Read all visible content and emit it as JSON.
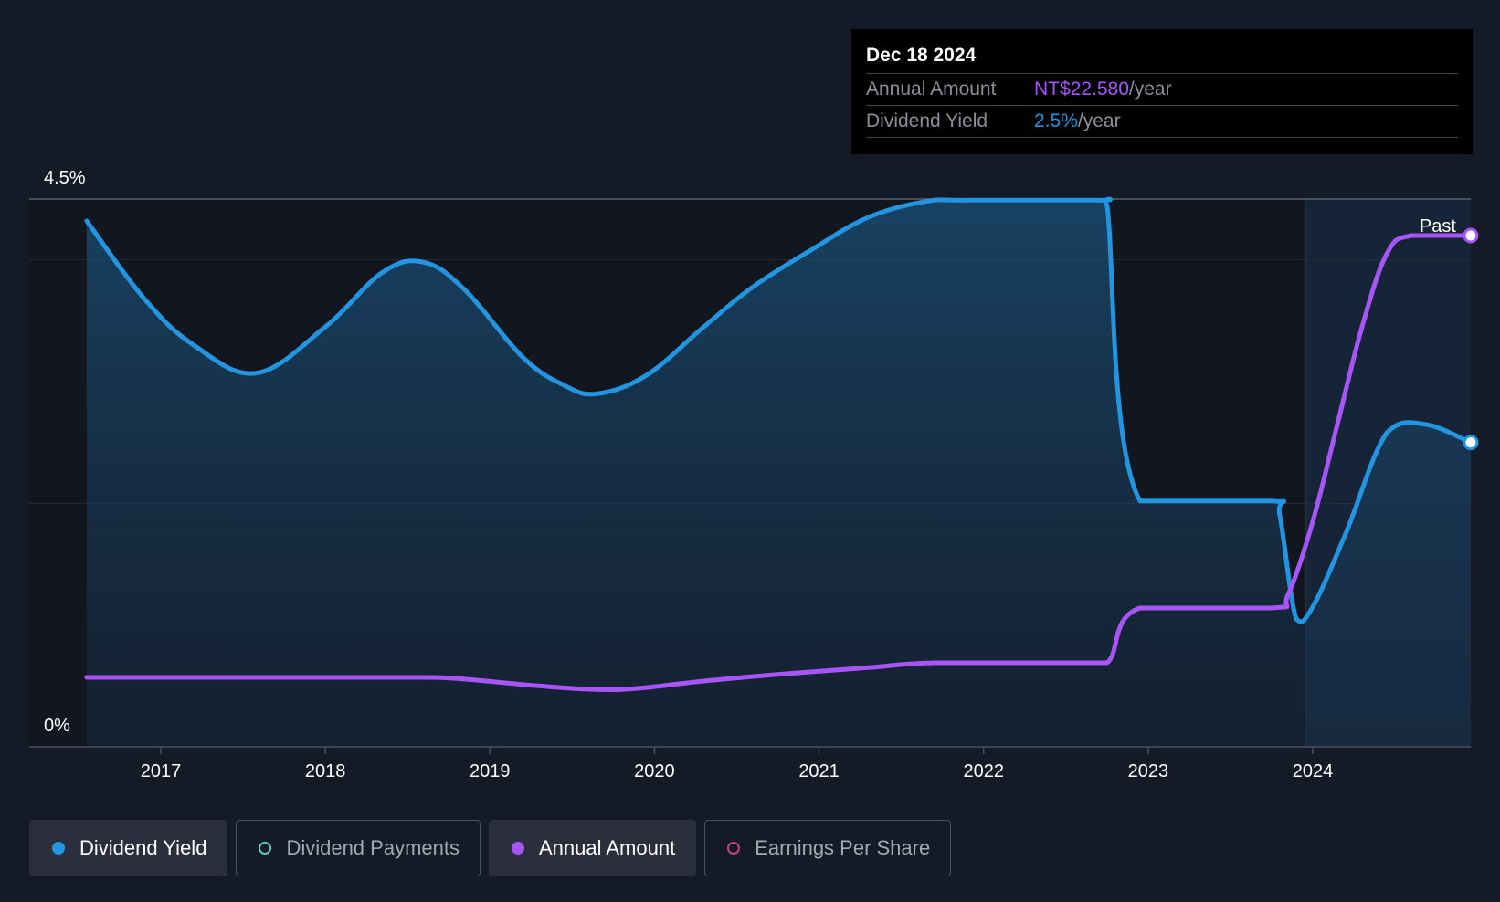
{
  "tooltip": {
    "date": "Dec 18 2024",
    "annual_label": "Annual Amount",
    "annual_value": "NT$22.580",
    "annual_unit": "/year",
    "yield_label": "Dividend Yield",
    "yield_value": "2.5%",
    "yield_unit": "/year"
  },
  "chart_data": {
    "type": "line",
    "y_axis": {
      "top_label": "4.5%",
      "bottom_label": "0%",
      "ylim": [
        0,
        4.5
      ],
      "unit": "%"
    },
    "x_ticks": [
      "2017",
      "2018",
      "2019",
      "2020",
      "2021",
      "2022",
      "2023",
      "2024"
    ],
    "xlim": [
      2016.55,
      2024.96
    ],
    "past_label": "Past",
    "past_region_start": 2023.96,
    "series": [
      {
        "name": "Dividend Yield",
        "color": "#2394df",
        "filled": true,
        "points": [
          [
            2016.55,
            4.32
          ],
          [
            2016.9,
            3.68
          ],
          [
            2017.2,
            3.3
          ],
          [
            2017.58,
            3.07
          ],
          [
            2018.0,
            3.45
          ],
          [
            2018.35,
            3.9
          ],
          [
            2018.6,
            3.98
          ],
          [
            2018.85,
            3.75
          ],
          [
            2019.2,
            3.2
          ],
          [
            2019.45,
            2.97
          ],
          [
            2019.65,
            2.9
          ],
          [
            2019.95,
            3.05
          ],
          [
            2020.3,
            3.45
          ],
          [
            2020.6,
            3.78
          ],
          [
            2020.95,
            4.08
          ],
          [
            2021.3,
            4.35
          ],
          [
            2021.65,
            4.48
          ],
          [
            2021.9,
            4.49
          ],
          [
            2022.7,
            4.49
          ],
          [
            2022.75,
            4.45
          ],
          [
            2022.95,
            2.02
          ],
          [
            2023.75,
            2.02
          ],
          [
            2023.8,
            1.9
          ],
          [
            2023.9,
            1.05
          ],
          [
            2024.0,
            1.15
          ],
          [
            2024.2,
            1.75
          ],
          [
            2024.45,
            2.58
          ],
          [
            2024.68,
            2.65
          ],
          [
            2024.96,
            2.5
          ]
        ]
      },
      {
        "name": "Annual Amount",
        "color": "#a855f7",
        "filled": false,
        "points": [
          [
            2016.55,
            0.57
          ],
          [
            2017.5,
            0.57
          ],
          [
            2018.5,
            0.57
          ],
          [
            2018.8,
            0.56
          ],
          [
            2019.3,
            0.5
          ],
          [
            2019.65,
            0.47
          ],
          [
            2019.9,
            0.48
          ],
          [
            2020.3,
            0.54
          ],
          [
            2020.8,
            0.6
          ],
          [
            2021.3,
            0.65
          ],
          [
            2021.7,
            0.69
          ],
          [
            2022.5,
            0.69
          ],
          [
            2022.75,
            0.69
          ],
          [
            2022.95,
            1.14
          ],
          [
            2023.75,
            1.14
          ],
          [
            2023.85,
            1.25
          ],
          [
            2024.0,
            1.85
          ],
          [
            2024.15,
            2.65
          ],
          [
            2024.3,
            3.45
          ],
          [
            2024.45,
            4.05
          ],
          [
            2024.6,
            4.2
          ],
          [
            2024.96,
            4.2
          ]
        ]
      }
    ]
  },
  "legend": [
    {
      "label": "Dividend Yield",
      "color": "#2394df",
      "active": true
    },
    {
      "label": "Dividend Payments",
      "color": "#5ec8b9",
      "active": false
    },
    {
      "label": "Annual Amount",
      "color": "#a855f7",
      "active": true
    },
    {
      "label": "Earnings Per Share",
      "color": "#c2417a",
      "active": false
    }
  ]
}
